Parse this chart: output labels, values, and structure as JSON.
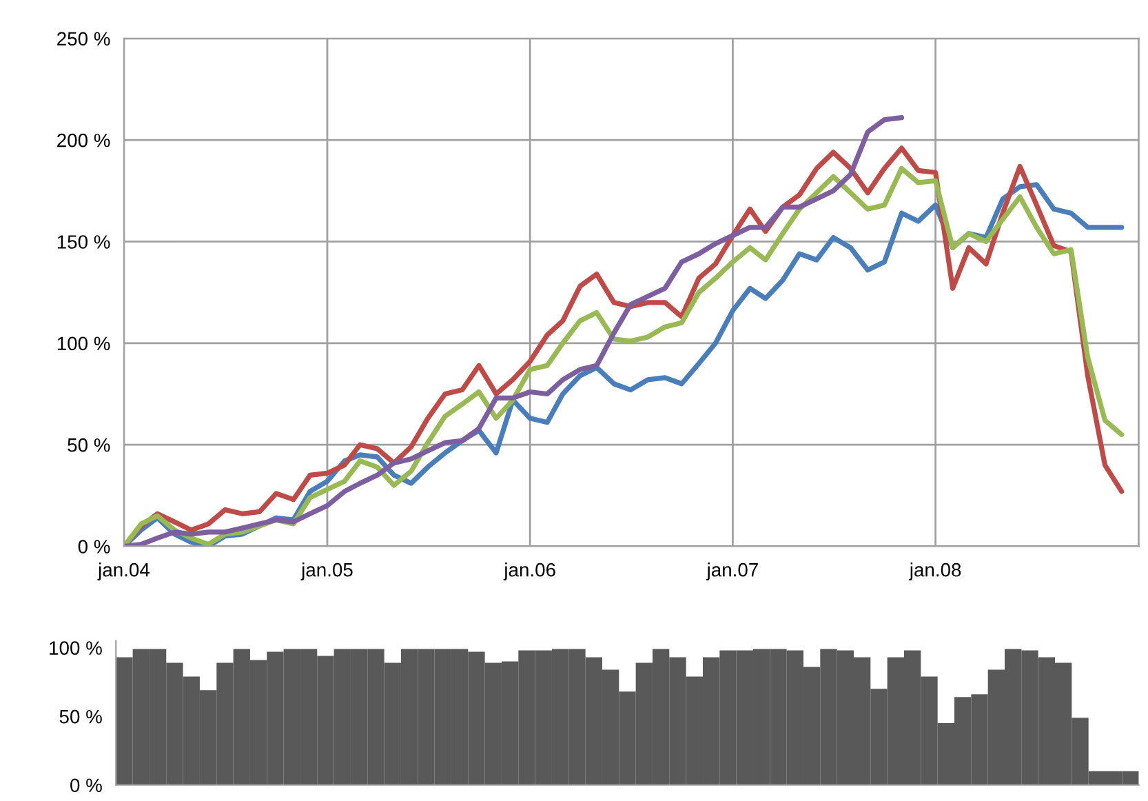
{
  "chart_data": [
    {
      "type": "line",
      "x": [
        "2004-01",
        "2004-02",
        "2004-03",
        "2004-04",
        "2004-05",
        "2004-06",
        "2004-07",
        "2004-08",
        "2004-09",
        "2004-10",
        "2004-11",
        "2004-12",
        "2005-01",
        "2005-02",
        "2005-03",
        "2005-04",
        "2005-05",
        "2005-06",
        "2005-07",
        "2005-08",
        "2005-09",
        "2005-10",
        "2005-11",
        "2005-12",
        "2006-01",
        "2006-02",
        "2006-03",
        "2006-04",
        "2006-05",
        "2006-06",
        "2006-07",
        "2006-08",
        "2006-09",
        "2006-10",
        "2006-11",
        "2006-12",
        "2007-01",
        "2007-02",
        "2007-03",
        "2007-04",
        "2007-05",
        "2007-06",
        "2007-07",
        "2007-08",
        "2007-09",
        "2007-10",
        "2007-11",
        "2007-12",
        "2008-01",
        "2008-02",
        "2008-03",
        "2008-04",
        "2008-05",
        "2008-06",
        "2008-07",
        "2008-08",
        "2008-09",
        "2008-10",
        "2008-11",
        "2008-12"
      ],
      "series": [
        {
          "color": "#4a7ebb",
          "values": [
            0,
            8,
            14,
            6,
            2,
            0,
            5,
            6,
            10,
            14,
            13,
            27,
            32,
            42,
            45,
            44,
            35,
            31,
            39,
            46,
            52,
            57,
            46,
            72,
            63,
            61,
            75,
            84,
            88,
            80,
            77,
            82,
            83,
            80,
            90,
            100,
            116,
            127,
            122,
            131,
            144,
            141,
            152,
            147,
            136,
            140,
            164,
            160,
            168,
            147,
            154,
            152,
            171,
            177,
            178,
            166,
            164,
            157,
            157,
            157
          ]
        },
        {
          "color": "#be4b48",
          "values": [
            0,
            10,
            16,
            12,
            8,
            11,
            18,
            16,
            17,
            26,
            23,
            35,
            36,
            40,
            50,
            48,
            41,
            49,
            63,
            75,
            77,
            89,
            75,
            82,
            91,
            104,
            111,
            128,
            134,
            120,
            118,
            120,
            120,
            113,
            132,
            139,
            153,
            166,
            155,
            167,
            173,
            186,
            194,
            186,
            174,
            186,
            196,
            185,
            184,
            127,
            147,
            139,
            164,
            187,
            168,
            148,
            145,
            84,
            40,
            27
          ]
        },
        {
          "color": "#98b954",
          "values": [
            0,
            11,
            15,
            8,
            4,
            1,
            6,
            7,
            10,
            13,
            11,
            24,
            28,
            32,
            42,
            39,
            30,
            37,
            51,
            64,
            70,
            76,
            63,
            72,
            87,
            89,
            100,
            111,
            115,
            102,
            101,
            103,
            108,
            110,
            125,
            132,
            140,
            147,
            141,
            154,
            166,
            174,
            182,
            174,
            166,
            168,
            186,
            179,
            180,
            147,
            154,
            150,
            161,
            172,
            157,
            144,
            146,
            93,
            62,
            55
          ]
        },
        {
          "color": "#7d5fa0",
          "values": [
            0,
            1,
            4,
            7,
            6,
            7,
            7,
            9,
            11,
            13,
            12,
            16,
            20,
            27,
            31,
            35,
            41,
            43,
            47,
            51,
            52,
            58,
            73,
            73,
            76,
            75,
            82,
            87,
            89,
            105,
            119,
            123,
            127,
            140,
            144,
            149,
            153,
            157,
            157,
            167,
            167,
            171,
            175,
            183,
            204,
            210,
            211,
            null,
            null,
            null,
            null,
            null,
            null,
            null,
            null,
            null,
            null,
            null,
            null,
            null
          ]
        }
      ],
      "xlim": [
        "2004-01",
        "2009-01"
      ],
      "xticks": [
        {
          "value": "2004-01",
          "label": "jan.04"
        },
        {
          "value": "2005-01",
          "label": "jan.05"
        },
        {
          "value": "2006-01",
          "label": "jan.06"
        },
        {
          "value": "2007-01",
          "label": "jan.07"
        },
        {
          "value": "2008-01",
          "label": "jan.08"
        },
        {
          "value": "2009-01",
          "label": null
        }
      ],
      "ylim": [
        0,
        250
      ],
      "yticks": [
        {
          "value": 0,
          "label": "0 %"
        },
        {
          "value": 50,
          "label": "50 %"
        },
        {
          "value": 100,
          "label": "100 %"
        },
        {
          "value": 150,
          "label": "150 %"
        },
        {
          "value": 200,
          "label": "200 %"
        },
        {
          "value": 250,
          "label": "250 %"
        }
      ],
      "grid": true,
      "line_style": "solid",
      "marker": "none"
    },
    {
      "type": "bar",
      "categories": [
        null,
        null,
        null,
        null,
        null,
        null,
        null,
        null,
        null,
        null,
        null,
        null,
        null,
        null,
        null,
        null,
        null,
        null,
        null,
        null,
        null,
        null,
        null,
        null,
        null,
        null,
        null,
        null,
        null,
        null,
        null,
        null,
        null,
        null,
        null,
        null,
        null,
        null,
        null,
        null,
        null,
        null,
        null,
        null,
        null,
        null,
        null,
        null,
        null,
        null,
        null,
        null,
        null,
        null,
        null,
        null,
        null,
        null,
        null,
        null,
        null
      ],
      "values": [
        93,
        99,
        99,
        89,
        79,
        69,
        89,
        99,
        91,
        97,
        99,
        99,
        94,
        99,
        99,
        99,
        89,
        99,
        99,
        99,
        99,
        97,
        89,
        90,
        98,
        98,
        99,
        99,
        93,
        84,
        68,
        89,
        99,
        93,
        79,
        93,
        98,
        98,
        99,
        99,
        98,
        86,
        99,
        98,
        93,
        70,
        93,
        98,
        79,
        45,
        64,
        66,
        84,
        99,
        98,
        93,
        89,
        49,
        10,
        10,
        10
      ],
      "color": "#595959",
      "ylim": [
        0,
        105
      ],
      "yticks": [
        {
          "value": 0,
          "label": "0 %"
        },
        {
          "value": 50,
          "label": "50 %"
        },
        {
          "value": 100,
          "label": "100 %"
        }
      ],
      "grid": false
    }
  ]
}
